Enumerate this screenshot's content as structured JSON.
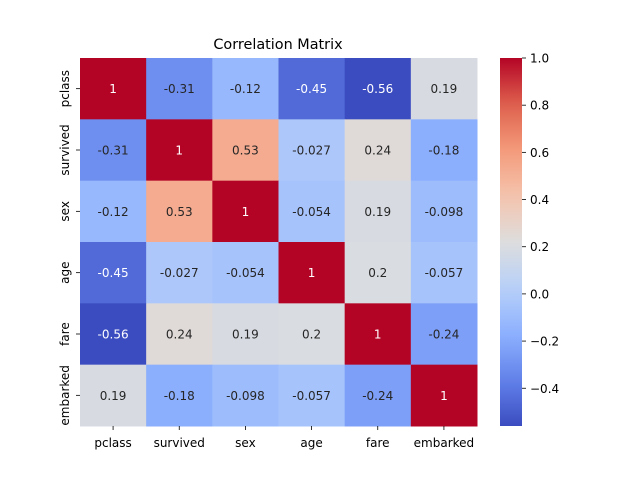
{
  "chart_data": {
    "type": "heatmap",
    "title": "Correlation Matrix",
    "xlabel": "",
    "ylabel": "",
    "x_categories": [
      "pclass",
      "survived",
      "sex",
      "age",
      "fare",
      "embarked"
    ],
    "y_categories": [
      "pclass",
      "survived",
      "sex",
      "age",
      "fare",
      "embarked"
    ],
    "values": [
      [
        1,
        -0.31,
        -0.12,
        -0.45,
        -0.56,
        0.19
      ],
      [
        -0.31,
        1,
        0.53,
        -0.027,
        0.24,
        -0.18
      ],
      [
        -0.12,
        0.53,
        1,
        -0.054,
        0.19,
        -0.098
      ],
      [
        -0.45,
        -0.027,
        -0.054,
        1,
        0.2,
        -0.057
      ],
      [
        -0.56,
        0.24,
        0.19,
        0.2,
        1,
        -0.24
      ],
      [
        0.19,
        -0.18,
        -0.098,
        -0.057,
        -0.24,
        1
      ]
    ],
    "labels": [
      [
        "1",
        "-0.31",
        "-0.12",
        "-0.45",
        "-0.56",
        "0.19"
      ],
      [
        "-0.31",
        "1",
        "0.53",
        "-0.027",
        "0.24",
        "-0.18"
      ],
      [
        "-0.12",
        "0.53",
        "1",
        "-0.054",
        "0.19",
        "-0.098"
      ],
      [
        "-0.45",
        "-0.027",
        "-0.054",
        "1",
        "0.2",
        "-0.057"
      ],
      [
        "-0.56",
        "0.24",
        "0.19",
        "0.2",
        "1",
        "-0.24"
      ],
      [
        "0.19",
        "-0.18",
        "-0.098",
        "-0.057",
        "-0.24",
        "1"
      ]
    ],
    "colormap": "coolwarm",
    "color_range": [
      -0.56,
      1.0
    ],
    "colorbar_ticks": [
      1.0,
      0.8,
      0.6,
      0.4,
      0.2,
      0.0,
      -0.2,
      -0.4
    ],
    "colorbar_tick_labels": [
      "1.0",
      "0.8",
      "0.6",
      "0.4",
      "0.2",
      "0.0",
      "−0.2",
      "−0.4"
    ],
    "grid": false
  }
}
